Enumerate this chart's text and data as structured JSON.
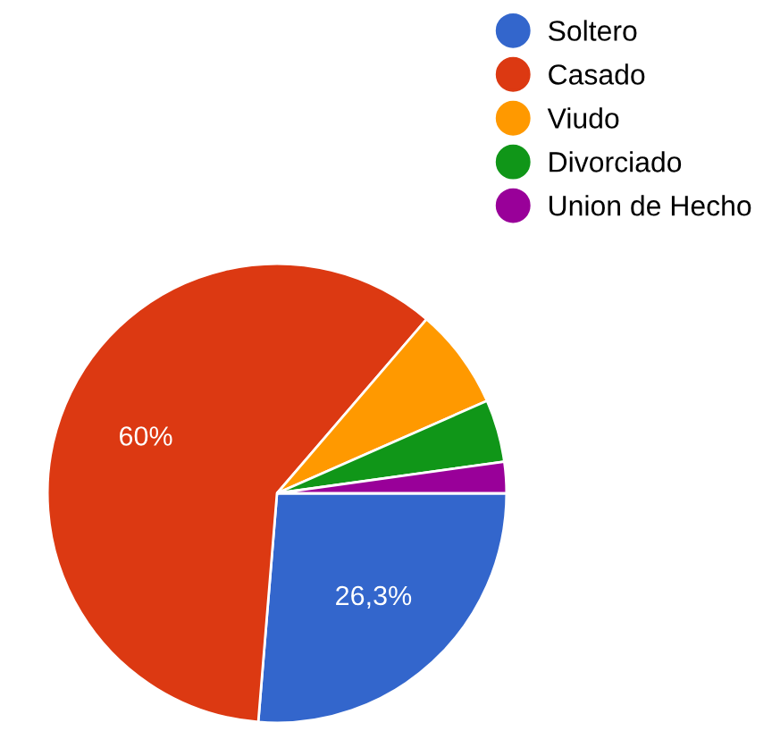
{
  "chart_data": {
    "type": "pie",
    "categories": [
      "Soltero",
      "Casado",
      "Viudo",
      "Divorciado",
      "Union de Hecho"
    ],
    "values": [
      26.3,
      60,
      7.1,
      4.4,
      2.2
    ],
    "colors": [
      "#3366cc",
      "#dc3912",
      "#ff9900",
      "#109618",
      "#990099"
    ],
    "value_labels": [
      "26,3%",
      "60%",
      null,
      null,
      null
    ],
    "legend": "top right"
  }
}
